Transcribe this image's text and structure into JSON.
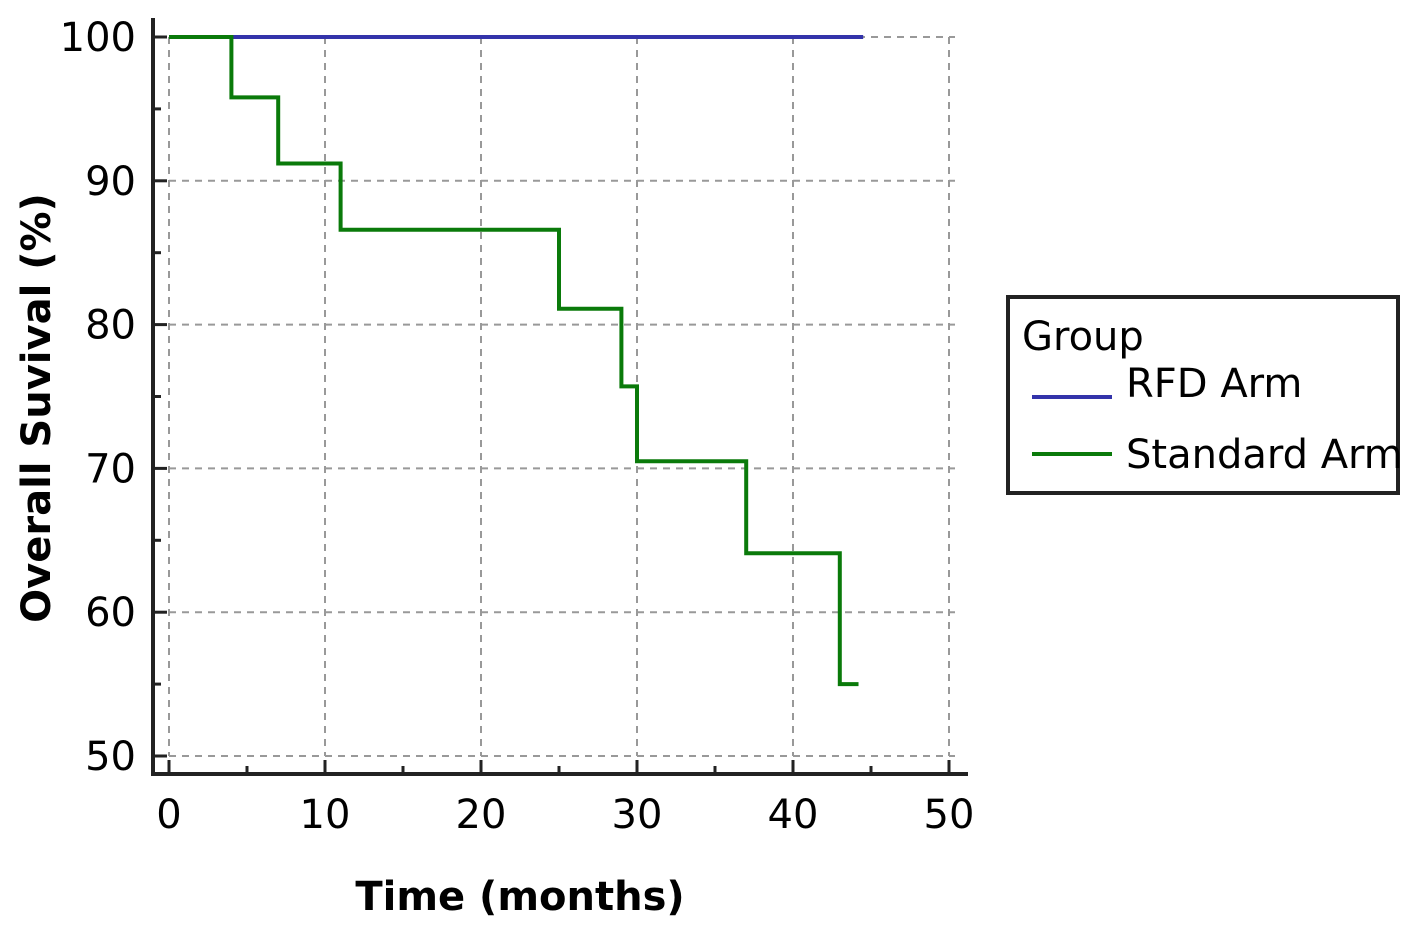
{
  "chart_data": {
    "type": "line",
    "step": true,
    "title": "",
    "xlabel": "Time (months)",
    "ylabel": "Overall Suvival (%)",
    "xlim": [
      0,
      50
    ],
    "ylim": [
      50,
      100
    ],
    "xticks": [
      0,
      10,
      20,
      30,
      40,
      50
    ],
    "yticks": [
      50,
      60,
      70,
      80,
      90,
      100
    ],
    "grid": true,
    "legend": {
      "title": "Group",
      "placement": "right"
    },
    "series": [
      {
        "name": "RFD Arm",
        "color": "#3333aa",
        "x": [
          0,
          44.5
        ],
        "y": [
          100,
          100
        ]
      },
      {
        "name": "Standard Arm",
        "color": "#0a7a0a",
        "x": [
          0,
          4,
          7,
          11,
          25,
          29,
          30,
          37,
          43,
          44.2
        ],
        "y": [
          100,
          95.8,
          91.2,
          86.6,
          81.1,
          75.7,
          70.5,
          64.1,
          55,
          55
        ]
      }
    ]
  }
}
